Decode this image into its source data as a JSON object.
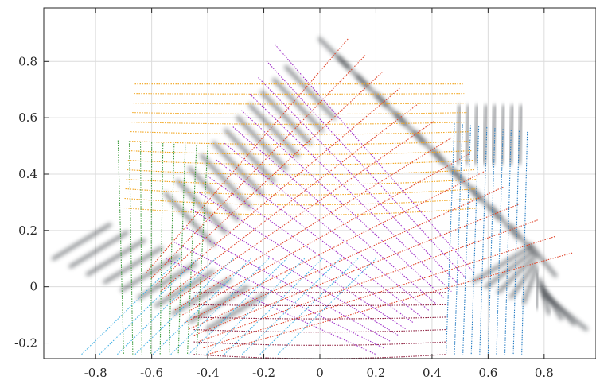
{
  "chart_data": {
    "type": "line",
    "title": "",
    "xlabel": "",
    "ylabel": "",
    "xlim": [
      -0.985,
      0.985
    ],
    "ylim": [
      -0.255,
      0.99
    ],
    "grid": true,
    "xticks": [
      -0.8,
      -0.6,
      -0.4,
      -0.2,
      0,
      0.2,
      0.4,
      0.6,
      0.8
    ],
    "xtick_labels": [
      "-0.8",
      "-0.6",
      "-0.4",
      "-0.2",
      "0",
      "0.2",
      "0.4",
      "0.6",
      "0.8"
    ],
    "yticks": [
      -0.2,
      0,
      0.2,
      0.4,
      0.6,
      0.8
    ],
    "ytick_labels": [
      "-0.2",
      "0",
      "0.2",
      "0.4",
      "0.6",
      "0.8"
    ],
    "line_families": [
      {
        "color": "#f2a51d",
        "count": 14,
        "start": [
          [
            -0.66,
            0.72
          ],
          [
            -0.7,
            0.28
          ]
        ],
        "end": [
          [
            0.51,
            0.72
          ],
          [
            0.57,
            0.28
          ]
        ],
        "bend": [
          0.0,
          -0.05
        ]
      },
      {
        "color": "#a030c8",
        "count": 14,
        "start": [
          [
            -0.16,
            0.86
          ],
          [
            -0.55,
            0.1
          ]
        ],
        "end": [
          [
            0.55,
            0.05
          ],
          [
            0.2,
            -0.24
          ]
        ],
        "bend": [
          0.0,
          0.0
        ]
      },
      {
        "color": "#e0442a",
        "count": 14,
        "start": [
          [
            0.1,
            0.88
          ],
          [
            0.9,
            0.12
          ]
        ],
        "end": [
          [
            -0.62,
            0.05
          ],
          [
            -0.4,
            -0.24
          ]
        ],
        "bend": [
          0.0,
          0.0
        ]
      },
      {
        "color": "#3c9a3c",
        "count": 9,
        "start": [
          [
            -0.72,
            0.52
          ],
          [
            -0.4,
            0.5
          ]
        ],
        "end": [
          [
            -0.7,
            -0.24
          ],
          [
            -0.44,
            -0.24
          ]
        ],
        "bend": [
          0.0,
          0.0
        ]
      },
      {
        "color": "#2a7fc4",
        "count": 10,
        "start": [
          [
            0.48,
            0.58
          ],
          [
            0.74,
            0.55
          ]
        ],
        "end": [
          [
            0.45,
            -0.24
          ],
          [
            0.72,
            -0.24
          ]
        ],
        "bend": [
          0.0,
          0.0
        ]
      },
      {
        "color": "#49b4e6",
        "count": 12,
        "start": [
          [
            -0.85,
            -0.24
          ],
          [
            -0.15,
            -0.24
          ]
        ],
        "end": [
          [
            -0.5,
            0.1
          ],
          [
            0.2,
            0.1
          ]
        ],
        "bend": [
          0.0,
          0.0
        ]
      },
      {
        "color": "#8b1a3a",
        "count": 6,
        "start": [
          [
            -0.45,
            -0.02
          ],
          [
            -0.45,
            -0.24
          ]
        ],
        "end": [
          [
            0.45,
            -0.02
          ],
          [
            0.45,
            -0.24
          ]
        ],
        "bend": [
          0.0,
          -0.03
        ]
      }
    ],
    "ghost_strokes": {
      "color": "#3a3f44",
      "groups": [
        {
          "count": 10,
          "from": [
            [
              -0.65,
              0.72
            ],
            [
              -0.7,
              0.14
            ]
          ],
          "to": [
            [
              -0.5,
              0.72
            ],
            [
              -0.55,
              0.14
            ]
          ]
        },
        {
          "count": 11,
          "from": [
            [
              -0.12,
              0.78
            ],
            [
              -0.55,
              0.33
            ]
          ],
          "to": [
            [
              0.05,
              0.6
            ],
            [
              -0.38,
              0.15
            ]
          ]
        },
        {
          "count": 12,
          "from": [
            [
              0.0,
              0.88
            ],
            [
              0.75,
              0.15
            ]
          ],
          "to": [
            [
              0.1,
              0.78
            ],
            [
              0.84,
              0.04
            ]
          ]
        },
        {
          "count": 8,
          "from": [
            [
              0.5,
              0.64
            ],
            [
              0.72,
              0.64
            ]
          ],
          "to": [
            [
              0.49,
              0.44
            ],
            [
              0.71,
              0.44
            ]
          ]
        },
        {
          "count": 10,
          "from": [
            [
              -0.95,
              0.1
            ],
            [
              -0.4,
              -0.15
            ]
          ],
          "to": [
            [
              -0.75,
              0.22
            ],
            [
              -0.2,
              -0.03
            ]
          ]
        },
        {
          "count": 10,
          "from": [
            [
              0.55,
              0.02
            ],
            [
              0.95,
              -0.15
            ]
          ],
          "to": [
            [
              0.75,
              0.14
            ],
            [
              0.8,
              -0.03
            ]
          ]
        },
        {
          "count": 9,
          "from": [
            [
              -0.42,
              -0.08
            ],
            [
              0.42,
              -0.08
            ]
          ],
          "to": [
            [
              -0.42,
              -0.2
            ],
            [
              0.42,
              -0.2
            ]
          ]
        }
      ]
    }
  }
}
